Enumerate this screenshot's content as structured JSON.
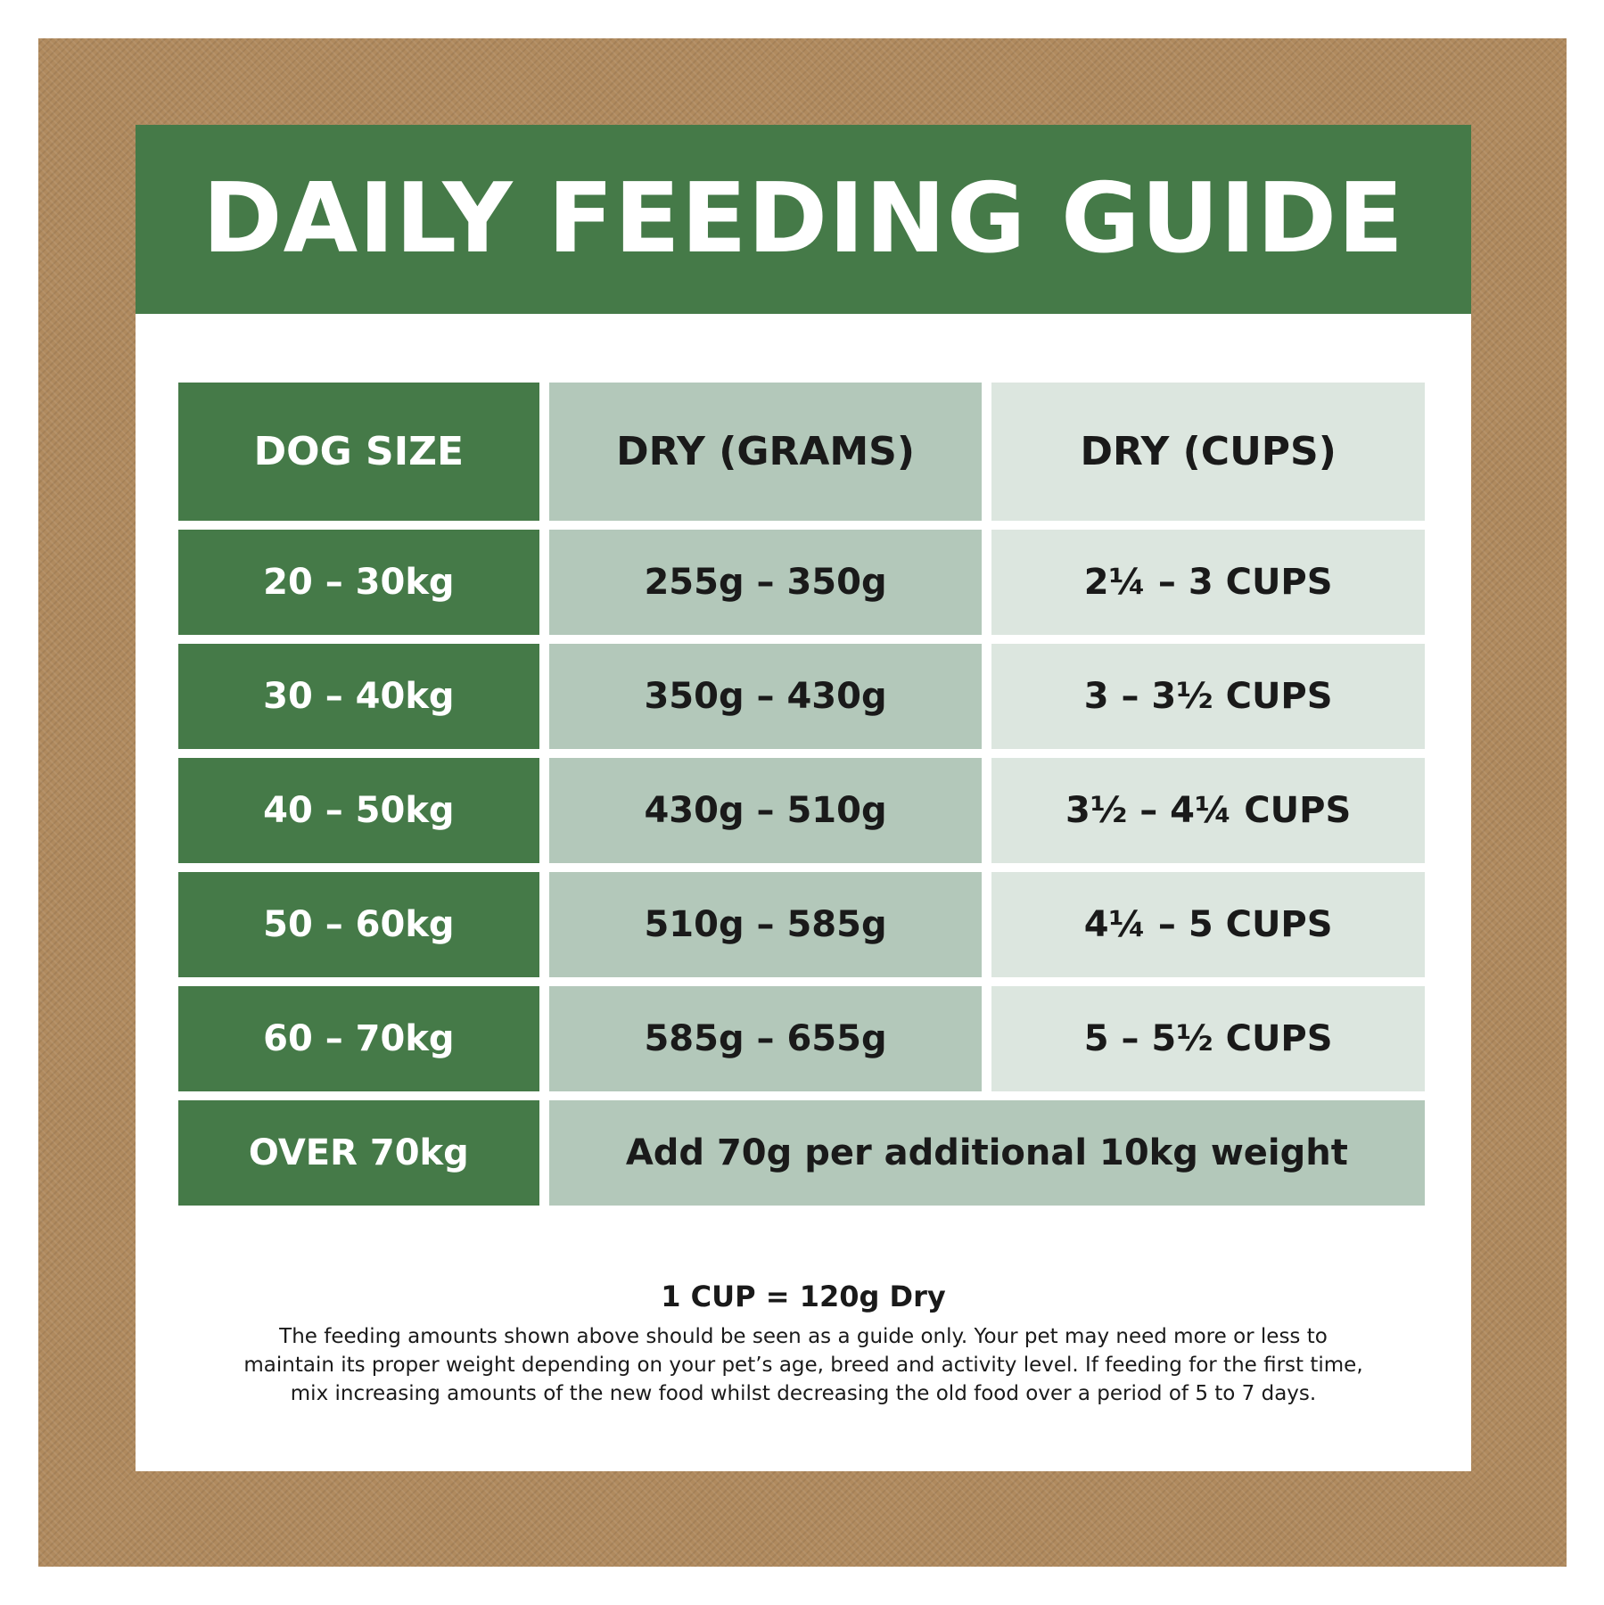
{
  "title": "DAILY FEEDING GUIDE",
  "table": {
    "headers": [
      "DOG SIZE",
      "DRY (GRAMS)",
      "DRY (CUPS)"
    ],
    "rows": [
      {
        "size": "20 – 30kg",
        "grams": "255g – 350g",
        "cups": "2¼ – 3 CUPS"
      },
      {
        "size": "30 – 40kg",
        "grams": "350g – 430g",
        "cups": "3 – 3½ CUPS"
      },
      {
        "size": "40 – 50kg",
        "grams": "430g – 510g",
        "cups": "3½ – 4¼ CUPS"
      },
      {
        "size": "50 – 60kg",
        "grams": "510g – 585g",
        "cups": "4¼ – 5 CUPS"
      },
      {
        "size": "60 – 70kg",
        "grams": "585g – 655g",
        "cups": "5 – 5½ CUPS"
      }
    ],
    "last_row": {
      "size": "OVER 70kg",
      "note": "Add 70g per additional 10kg weight"
    }
  },
  "footer": {
    "cup_equivalence": "1 CUP = 120g Dry",
    "note_lines": [
      "The feeding amounts shown above should be seen as a guide only. Your pet may need more or less to",
      "maintain its proper weight depending on your pet’s age, breed and activity level. If feeding for the first time,",
      "mix increasing amounts of the new food whilst decreasing the old food over a period of 5 to 7 days."
    ]
  },
  "colors": {
    "dark_green": "#457a48",
    "mid_green": "#b3c8ba",
    "light_green": "#dce6df",
    "frame_tan": "#b08a5e"
  }
}
